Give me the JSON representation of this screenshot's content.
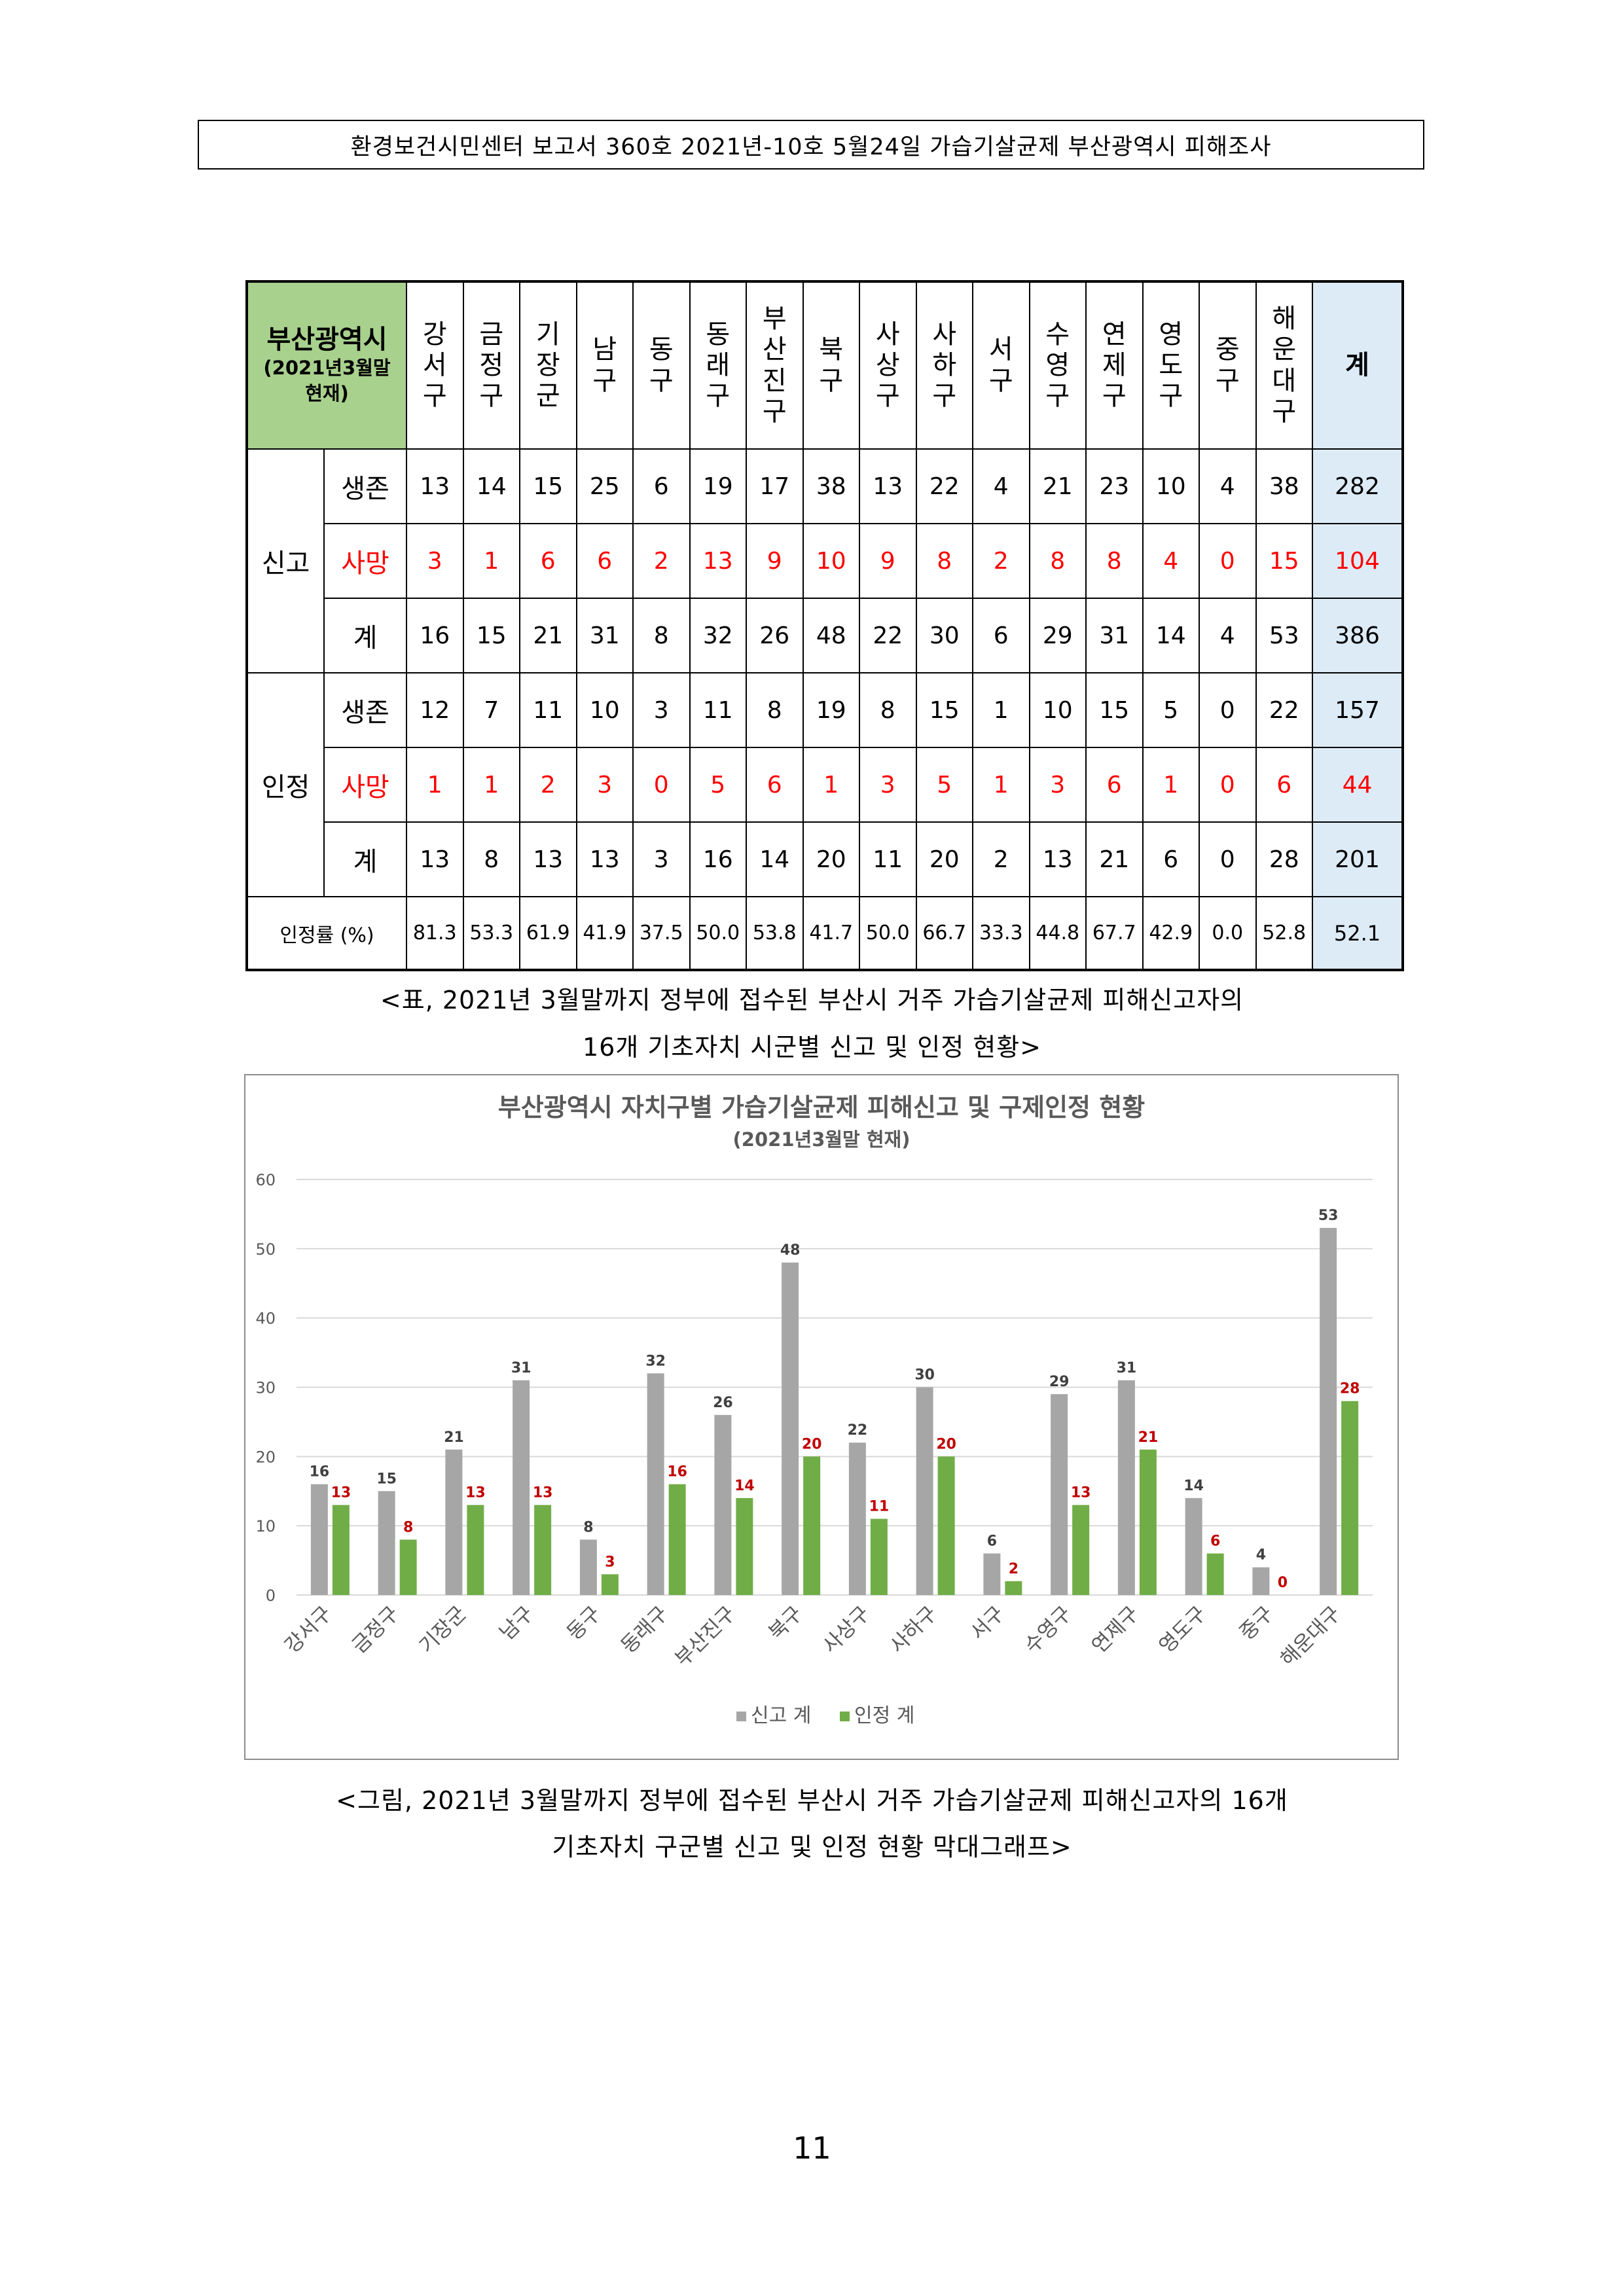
{
  "header": "환경보건시민센터 보고서 360호 2021년-10호 5월24일 가습기살균제 부산광역시 피해조사",
  "table": {
    "corner_title": "부산광역시",
    "corner_sub1": "(2021년3월말",
    "corner_sub2": "현재)",
    "districts": [
      [
        "강",
        "서",
        "구"
      ],
      [
        "금",
        "정",
        "구"
      ],
      [
        "기",
        "장",
        "군"
      ],
      [
        "남",
        "구"
      ],
      [
        "동",
        "구"
      ],
      [
        "동",
        "래",
        "구"
      ],
      [
        "부",
        "산",
        "진",
        "구"
      ],
      [
        "북",
        "구"
      ],
      [
        "사",
        "상",
        "구"
      ],
      [
        "사",
        "하",
        "구"
      ],
      [
        "서",
        "구"
      ],
      [
        "수",
        "영",
        "구"
      ],
      [
        "연",
        "제",
        "구"
      ],
      [
        "영",
        "도",
        "구"
      ],
      [
        "중",
        "구"
      ],
      [
        "해",
        "운",
        "대",
        "구"
      ]
    ],
    "total_header": "계",
    "groups": [
      {
        "label": "신고",
        "rows": [
          {
            "label": "생존",
            "kind": "alive",
            "values": [
              "13",
              "14",
              "15",
              "25",
              "6",
              "19",
              "17",
              "38",
              "13",
              "22",
              "4",
              "21",
              "23",
              "10",
              "4",
              "38"
            ],
            "total": "282"
          },
          {
            "label": "사망",
            "kind": "death",
            "values": [
              "3",
              "1",
              "6",
              "6",
              "2",
              "13",
              "9",
              "10",
              "9",
              "8",
              "2",
              "8",
              "8",
              "4",
              "0",
              "15"
            ],
            "total": "104"
          },
          {
            "label": "계",
            "kind": "sum",
            "values": [
              "16",
              "15",
              "21",
              "31",
              "8",
              "32",
              "26",
              "48",
              "22",
              "30",
              "6",
              "29",
              "31",
              "14",
              "4",
              "53"
            ],
            "total": "386"
          }
        ]
      },
      {
        "label": "인정",
        "rows": [
          {
            "label": "생존",
            "kind": "alive",
            "values": [
              "12",
              "7",
              "11",
              "10",
              "3",
              "11",
              "8",
              "19",
              "8",
              "15",
              "1",
              "10",
              "15",
              "5",
              "0",
              "22"
            ],
            "total": "157"
          },
          {
            "label": "사망",
            "kind": "death",
            "values": [
              "1",
              "1",
              "2",
              "3",
              "0",
              "5",
              "6",
              "1",
              "3",
              "5",
              "1",
              "3",
              "6",
              "1",
              "0",
              "6"
            ],
            "total": "44"
          },
          {
            "label": "계",
            "kind": "sum",
            "values": [
              "13",
              "8",
              "13",
              "13",
              "3",
              "16",
              "14",
              "20",
              "11",
              "20",
              "2",
              "13",
              "21",
              "6",
              "0",
              "28"
            ],
            "total": "201"
          }
        ]
      }
    ],
    "rate_label": "인정률 (%)",
    "rate_values": [
      "81.3",
      "53.3",
      "61.9",
      "41.9",
      "37.5",
      "50.0",
      "53.8",
      "41.7",
      "50.0",
      "66.7",
      "33.3",
      "44.8",
      "67.7",
      "42.9",
      "0.0",
      "52.8"
    ],
    "rate_total": "52.1"
  },
  "caption1_line1": "<표, 2021년 3월말까지 정부에 접수된 부산시 거주 가습기살균제 피해신고자의",
  "caption1_line2": "16개 기초자치 시군별 신고 및 인정 현황>",
  "chart_data": {
    "type": "bar",
    "title": "부산광역시 자치구별 가습기살균제 피해신고 및 구제인정 현황",
    "subtitle": "(2021년3월말 현재)",
    "categories": [
      "강서구",
      "금정구",
      "기장군",
      "남구",
      "동구",
      "동래구",
      "부산진구",
      "북구",
      "사상구",
      "사하구",
      "서구",
      "수영구",
      "연제구",
      "영도구",
      "중구",
      "해운대구"
    ],
    "series": [
      {
        "name": "신고 계",
        "color": "#a6a6a6",
        "label_color": "#404040",
        "values": [
          16,
          15,
          21,
          31,
          8,
          32,
          26,
          48,
          22,
          30,
          6,
          29,
          31,
          14,
          4,
          53
        ]
      },
      {
        "name": "인정 계",
        "color": "#70ad47",
        "label_color": "#c00000",
        "values": [
          13,
          8,
          13,
          13,
          3,
          16,
          14,
          20,
          11,
          20,
          2,
          13,
          21,
          6,
          0,
          28
        ]
      }
    ],
    "ylim": [
      0,
      60
    ],
    "yticks": [
      0,
      10,
      20,
      30,
      40,
      50,
      60
    ],
    "grid": true,
    "legend": "bottom"
  },
  "caption2_line1": "<그림, 2021년 3월말까지 정부에 접수된 부산시 거주 가습기살균제 피해신고자의 16개",
  "caption2_line2": "기초자치 구군별 신고 및 인정 현황 막대그래프>",
  "page_number": "11"
}
